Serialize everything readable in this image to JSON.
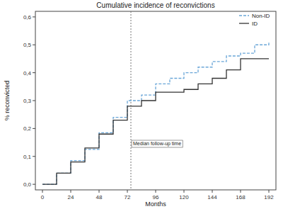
{
  "chart_data": {
    "type": "step",
    "title": "Cumulative incidence of reconvictions",
    "x_label": "Months",
    "y_label": "% reconvicted",
    "x": [
      0,
      12,
      24,
      36,
      48,
      60,
      72,
      84,
      96,
      108,
      120,
      132,
      144,
      156,
      168,
      180,
      192
    ],
    "series": [
      {
        "name": "Non-ID",
        "color": "#6aa6d8",
        "line_style": "dashed",
        "values": [
          0,
          0.04,
          0.085,
          0.125,
          0.185,
          0.24,
          0.3,
          0.32,
          0.36,
          0.38,
          0.4,
          0.42,
          0.44,
          0.46,
          0.47,
          0.5,
          0.51
        ]
      },
      {
        "name": "ID",
        "color": "#333333",
        "line_style": "solid",
        "values": [
          0,
          0.04,
          0.08,
          0.13,
          0.18,
          0.23,
          0.28,
          0.3,
          0.33,
          0.33,
          0.34,
          0.36,
          0.38,
          0.41,
          0.45,
          0.45,
          0.45
        ]
      }
    ],
    "xlim": [
      -6,
      198
    ],
    "xticks": [
      0,
      24,
      48,
      72,
      96,
      120,
      144,
      168,
      192
    ],
    "ylim": [
      -0.02,
      0.62
    ],
    "yticks": [
      {
        "value": 0,
        "label": "0,0"
      },
      {
        "value": 0.1,
        "label": "0,1"
      },
      {
        "value": 0.2,
        "label": "0,2"
      },
      {
        "value": 0.3,
        "label": "0,3"
      },
      {
        "value": 0.4,
        "label": "0,4"
      },
      {
        "value": 0.5,
        "label": "0,5"
      },
      {
        "value": 0.6,
        "label": "0,6"
      }
    ],
    "annotations": [
      {
        "x": 75,
        "text": "Median follow-up time"
      }
    ],
    "legend": "top-right",
    "grid": false
  }
}
